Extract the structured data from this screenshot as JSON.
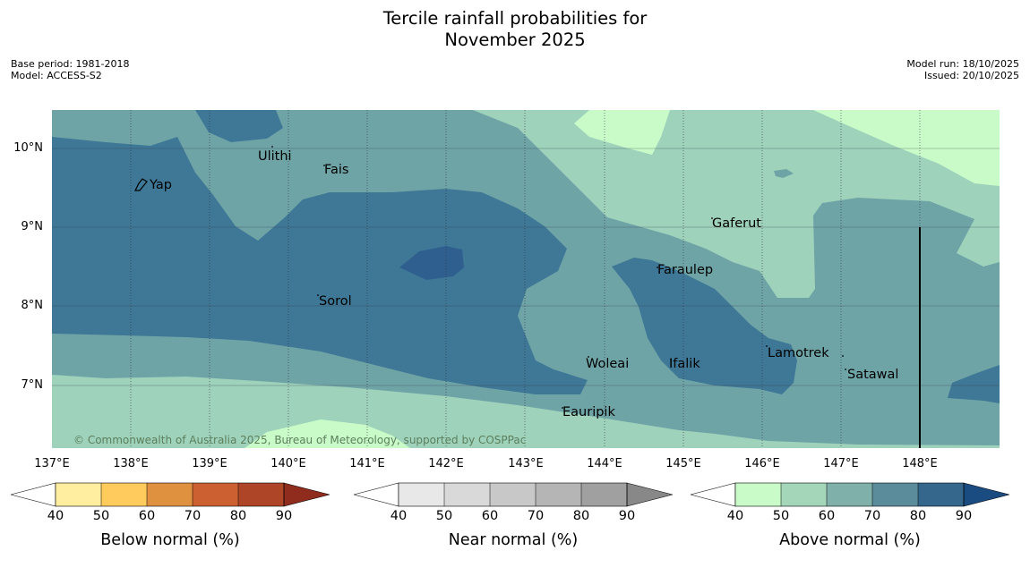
{
  "title_line1": "Tercile rainfall probabilities for",
  "title_line2": "November 2025",
  "base_period": "Base period: 1981-2018",
  "model": "Model: ACCESS-S2",
  "model_run": "Model run: 18/10/2025",
  "issued": "Issued: 20/10/2025",
  "lat_labels": [
    "10°N",
    "9°N",
    "8°N",
    "7°N"
  ],
  "lon_labels": [
    "137°E",
    "138°E",
    "139°E",
    "140°E",
    "141°E",
    "142°E",
    "143°E",
    "144°E",
    "145°E",
    "146°E",
    "147°E",
    "148°E"
  ],
  "places": {
    "yap": "Yap",
    "ulithi": "Ulithi",
    "fais": "Fais",
    "gaferut": "Gaferut",
    "faraulep": "Faraulep",
    "sorol": "Sorol",
    "woleai": "Woleai",
    "ifalik": "Ifalik",
    "lamotrek": "Lamotrek",
    "satawal": "Satawal",
    "eauripik": "Eauripik"
  },
  "copyright": "© Commonwealth of Australia 2025, Bureau of Meteorology, supported by COSPPac",
  "colorbars": [
    {
      "label": "Below normal (%)",
      "ticks": [
        "40",
        "50",
        "60",
        "70",
        "80",
        "90"
      ],
      "colors": [
        "#ffeda0",
        "#fecb5c",
        "#e0913f",
        "#cc6030",
        "#ae4526",
        "#8f2c1d"
      ]
    },
    {
      "label": "Near normal (%)",
      "ticks": [
        "40",
        "50",
        "60",
        "70",
        "80",
        "90"
      ],
      "colors": [
        "#e8e8e8",
        "#d9d9d9",
        "#c8c8c8",
        "#b5b5b5",
        "#a0a0a0",
        "#888888"
      ]
    },
    {
      "label": "Above normal (%)",
      "ticks": [
        "40",
        "50",
        "60",
        "70",
        "80",
        "90"
      ],
      "colors": [
        "#c9fbc9",
        "#a4d6b9",
        "#7fb1aa",
        "#5a8c9b",
        "#35678c",
        "#1a4c82"
      ]
    }
  ],
  "map_colors": {
    "above_50": "#9ed2bb",
    "above_40": "#c9fbc9",
    "above_60": "#6fa4a7",
    "above_70": "#3f7896",
    "above_80": "#2f5f8f"
  }
}
